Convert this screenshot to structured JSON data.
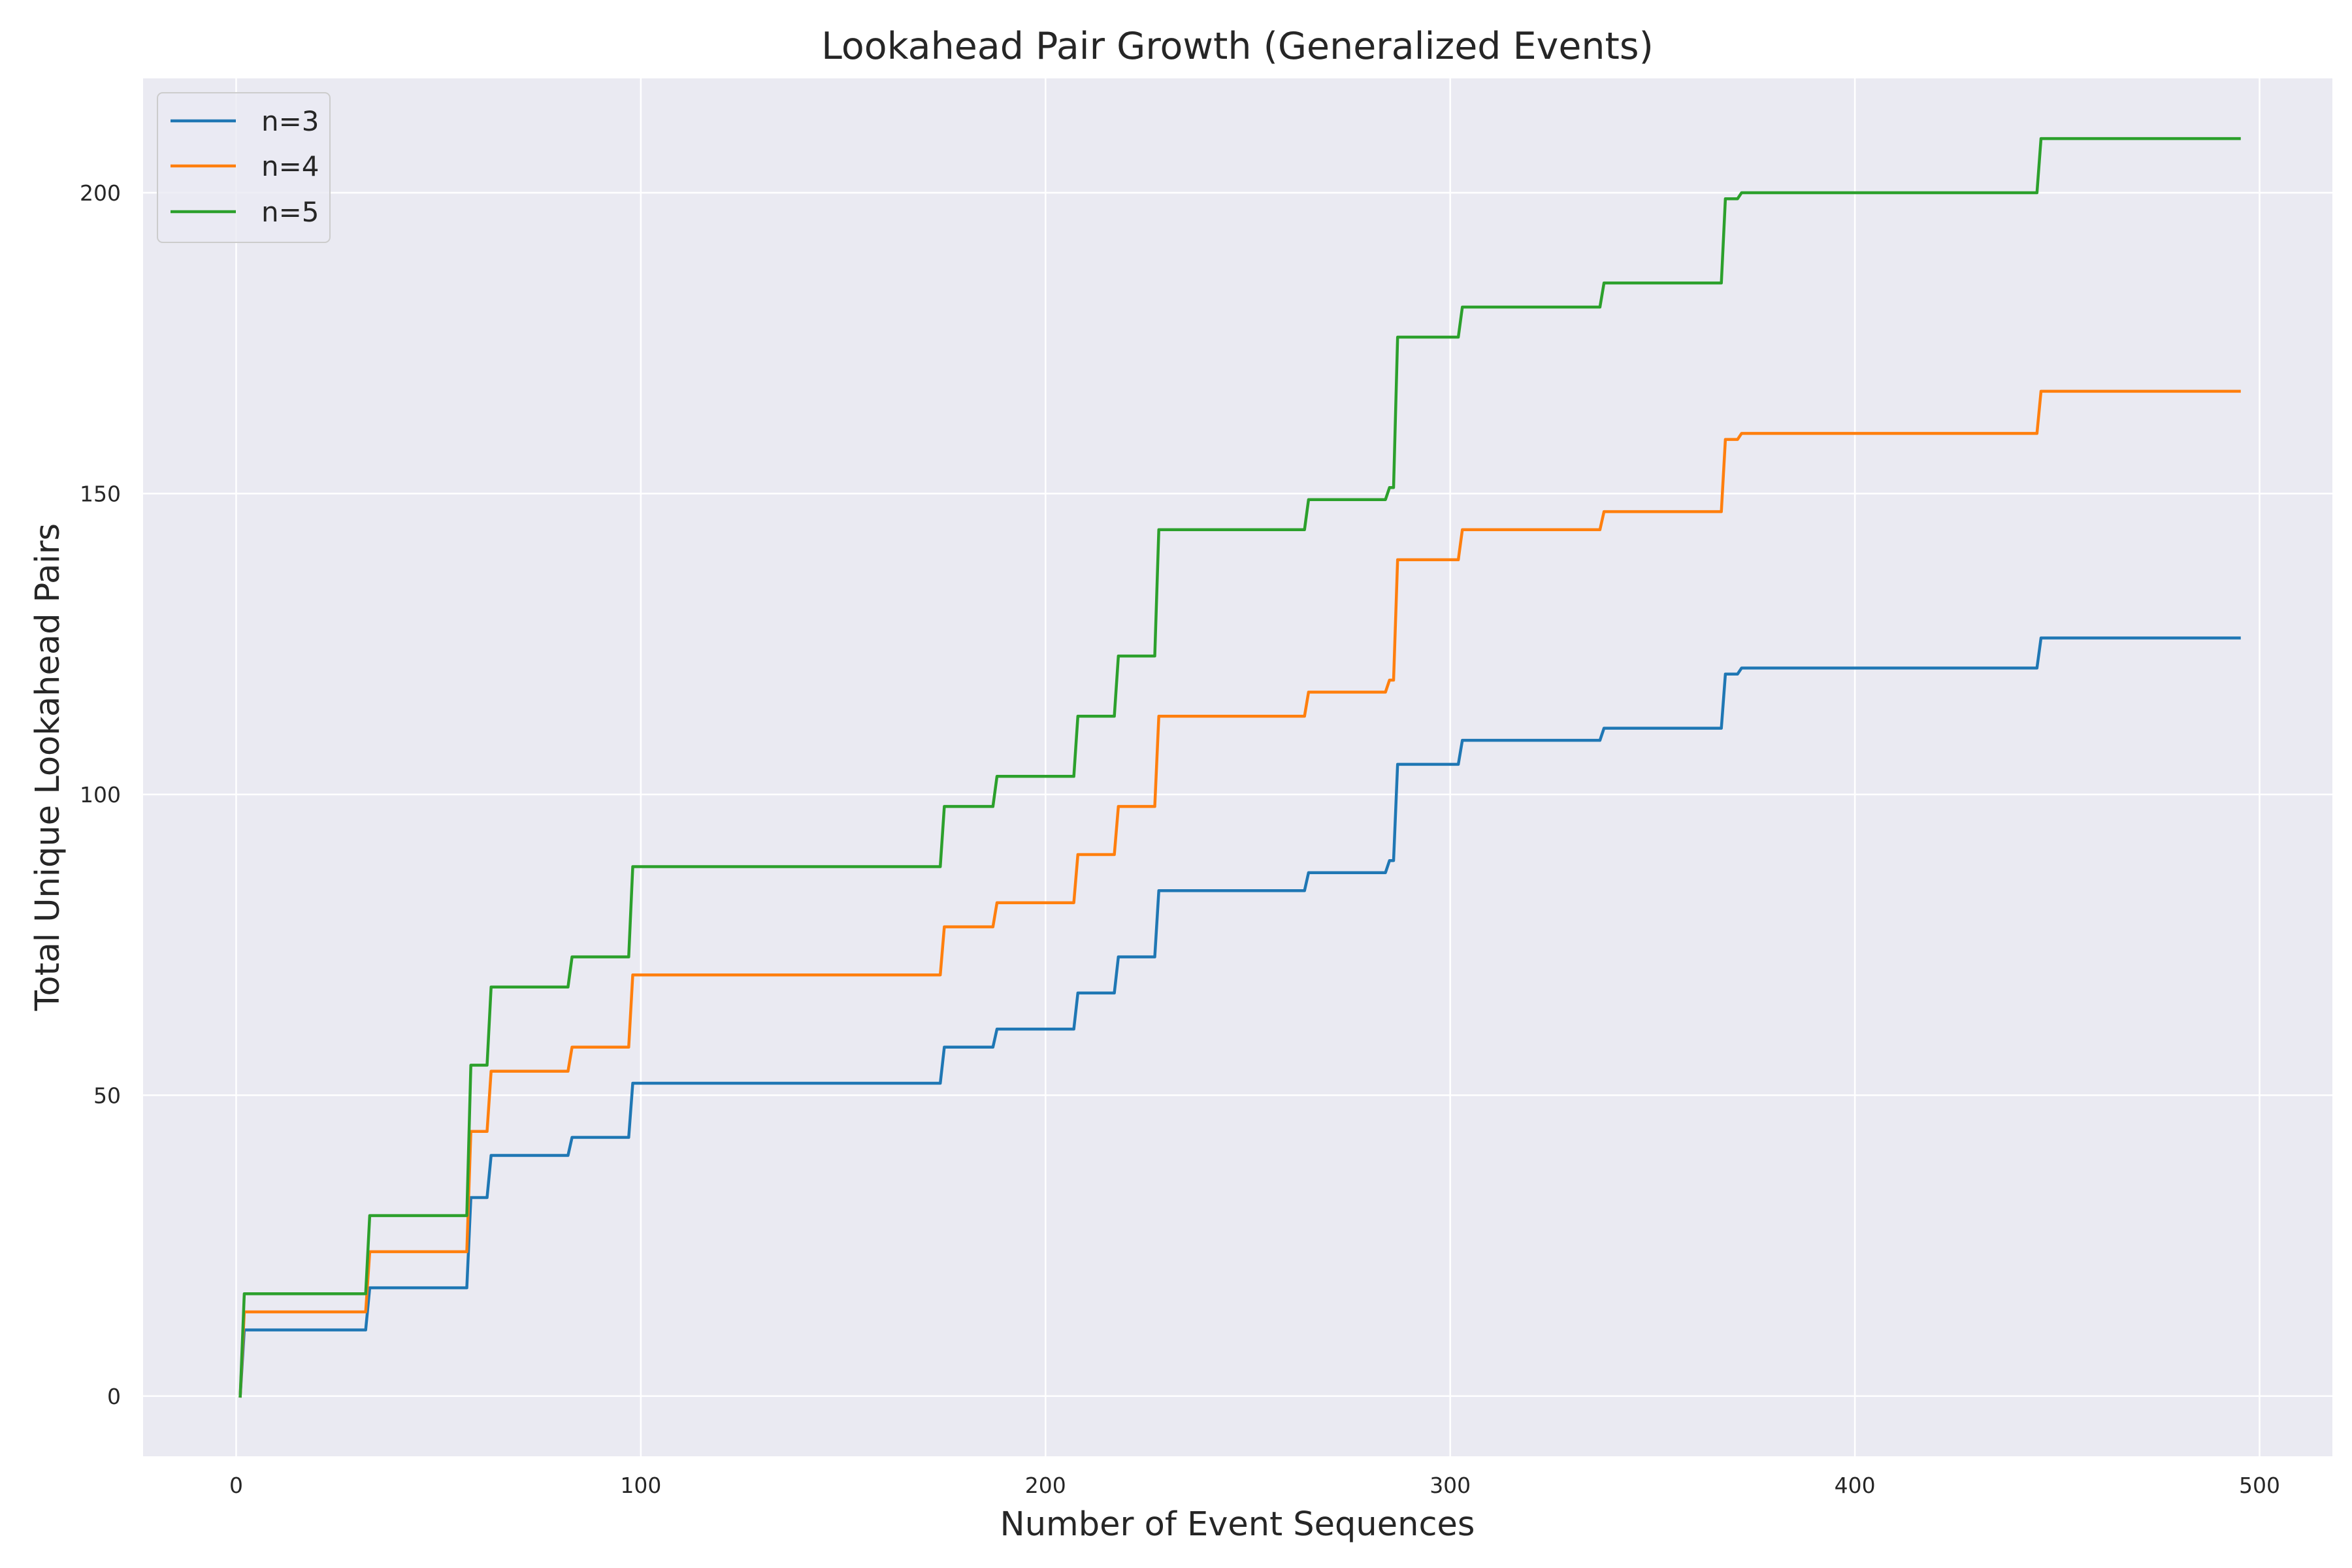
{
  "chart_data": {
    "type": "line",
    "title": "Lookahead Pair Growth (Generalized Events)",
    "xlabel": "Number of Event Sequences",
    "ylabel": "Total Unique Lookahead Pairs",
    "xlim": [
      -23,
      518
    ],
    "ylim": [
      -10,
      219
    ],
    "x_ticks": [
      0,
      100,
      200,
      300,
      400,
      500
    ],
    "y_ticks": [
      0,
      50,
      100,
      150,
      200
    ],
    "grid": true,
    "legend_position": "top-left",
    "background_color": "#eaeaf2",
    "grid_color": "#ffffff",
    "series": [
      {
        "name": "n=3",
        "color": "#1f77b4",
        "points": [
          [
            1,
            0
          ],
          [
            2,
            11
          ],
          [
            32,
            11
          ],
          [
            33,
            18
          ],
          [
            57,
            18
          ],
          [
            58,
            33
          ],
          [
            62,
            33
          ],
          [
            63,
            40
          ],
          [
            82,
            40
          ],
          [
            83,
            43
          ],
          [
            97,
            43
          ],
          [
            98,
            52
          ],
          [
            174,
            52
          ],
          [
            175,
            58
          ],
          [
            187,
            58
          ],
          [
            188,
            61
          ],
          [
            207,
            61
          ],
          [
            208,
            67
          ],
          [
            217,
            67
          ],
          [
            218,
            73
          ],
          [
            227,
            73
          ],
          [
            228,
            84
          ],
          [
            264,
            84
          ],
          [
            265,
            87
          ],
          [
            284,
            87
          ],
          [
            285,
            89
          ],
          [
            286,
            89
          ],
          [
            287,
            105
          ],
          [
            302,
            105
          ],
          [
            303,
            109
          ],
          [
            337,
            109
          ],
          [
            338,
            111
          ],
          [
            367,
            111
          ],
          [
            368,
            120
          ],
          [
            371,
            120
          ],
          [
            372,
            121
          ],
          [
            445,
            121
          ],
          [
            446,
            126
          ],
          [
            495,
            126
          ]
        ]
      },
      {
        "name": "n=4",
        "color": "#ff7f0e",
        "points": [
          [
            1,
            0
          ],
          [
            2,
            14
          ],
          [
            32,
            14
          ],
          [
            33,
            24
          ],
          [
            57,
            24
          ],
          [
            58,
            44
          ],
          [
            62,
            44
          ],
          [
            63,
            54
          ],
          [
            82,
            54
          ],
          [
            83,
            58
          ],
          [
            97,
            58
          ],
          [
            98,
            70
          ],
          [
            174,
            70
          ],
          [
            175,
            78
          ],
          [
            187,
            78
          ],
          [
            188,
            82
          ],
          [
            207,
            82
          ],
          [
            208,
            90
          ],
          [
            217,
            90
          ],
          [
            218,
            98
          ],
          [
            227,
            98
          ],
          [
            228,
            113
          ],
          [
            264,
            113
          ],
          [
            265,
            117
          ],
          [
            284,
            117
          ],
          [
            285,
            119
          ],
          [
            286,
            119
          ],
          [
            287,
            139
          ],
          [
            302,
            139
          ],
          [
            303,
            144
          ],
          [
            337,
            144
          ],
          [
            338,
            147
          ],
          [
            367,
            147
          ],
          [
            368,
            159
          ],
          [
            371,
            159
          ],
          [
            372,
            160
          ],
          [
            445,
            160
          ],
          [
            446,
            167
          ],
          [
            495,
            167
          ]
        ]
      },
      {
        "name": "n=5",
        "color": "#2ca02c",
        "points": [
          [
            1,
            0
          ],
          [
            2,
            17
          ],
          [
            32,
            17
          ],
          [
            33,
            30
          ],
          [
            57,
            30
          ],
          [
            58,
            55
          ],
          [
            62,
            55
          ],
          [
            63,
            68
          ],
          [
            82,
            68
          ],
          [
            83,
            73
          ],
          [
            97,
            73
          ],
          [
            98,
            88
          ],
          [
            174,
            88
          ],
          [
            175,
            98
          ],
          [
            187,
            98
          ],
          [
            188,
            103
          ],
          [
            207,
            103
          ],
          [
            208,
            113
          ],
          [
            217,
            113
          ],
          [
            218,
            123
          ],
          [
            227,
            123
          ],
          [
            228,
            144
          ],
          [
            264,
            144
          ],
          [
            265,
            149
          ],
          [
            284,
            149
          ],
          [
            285,
            151
          ],
          [
            286,
            151
          ],
          [
            287,
            176
          ],
          [
            302,
            176
          ],
          [
            303,
            181
          ],
          [
            337,
            181
          ],
          [
            338,
            185
          ],
          [
            367,
            185
          ],
          [
            368,
            199
          ],
          [
            371,
            199
          ],
          [
            372,
            200
          ],
          [
            445,
            200
          ],
          [
            446,
            209
          ],
          [
            495,
            209
          ]
        ]
      }
    ]
  }
}
